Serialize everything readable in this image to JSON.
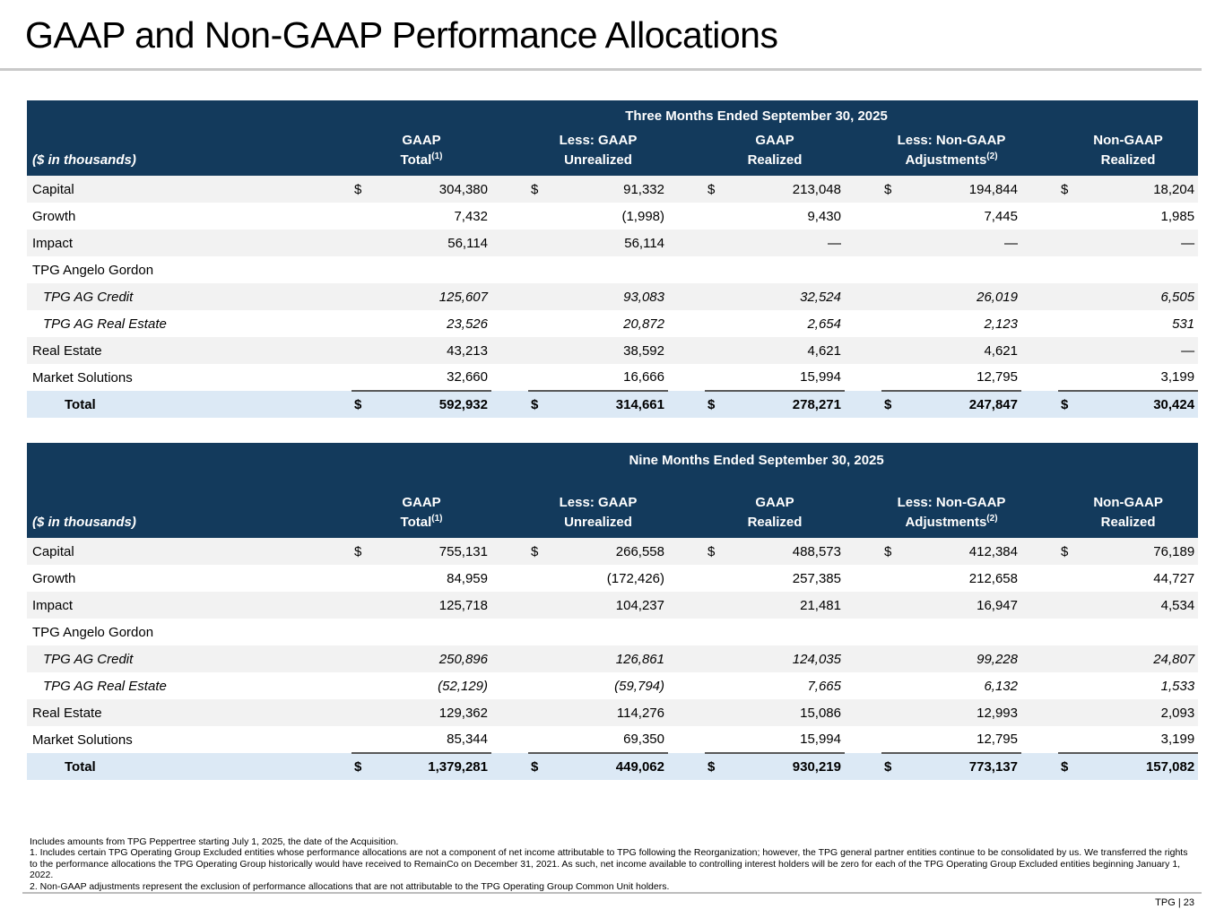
{
  "page": {
    "title": "GAAP and Non-GAAP Performance Allocations",
    "footer": "TPG | 23"
  },
  "colors": {
    "header_bg": "#133A5C",
    "row_alt_bg": "#F2F2F2",
    "total_row_bg": "#DCE9F5",
    "divider": "#C9C9C9",
    "sum_line": "#595959"
  },
  "tables": [
    {
      "period": "Three Months Ended September 30, 2025",
      "row_header": "($ in thousands)",
      "currency_symbol": "$",
      "columns": [
        {
          "line1": "GAAP",
          "line2": "Total",
          "sup": "(1)"
        },
        {
          "line1": "Less: GAAP",
          "line2": "Unrealized",
          "sup": ""
        },
        {
          "line1": "GAAP",
          "line2": "Realized",
          "sup": ""
        },
        {
          "line1": "Less: Non-GAAP",
          "line2": "Adjustments",
          "sup": "(2)"
        },
        {
          "line1": "Non-GAAP",
          "line2": "Realized",
          "sup": ""
        }
      ],
      "rows": [
        {
          "label": "Capital",
          "indent": false,
          "italic": false,
          "show_dollar": true,
          "values": [
            "304,380",
            "91,332",
            "213,048",
            "194,844",
            "18,204"
          ]
        },
        {
          "label": "Growth",
          "indent": false,
          "italic": false,
          "show_dollar": false,
          "values": [
            "7,432",
            "(1,998)",
            "9,430",
            "7,445",
            "1,985"
          ]
        },
        {
          "label": "Impact",
          "indent": false,
          "italic": false,
          "show_dollar": false,
          "values": [
            "56,114",
            "56,114",
            "—",
            "—",
            "—"
          ]
        },
        {
          "label": "TPG Angelo Gordon",
          "indent": false,
          "italic": false,
          "show_dollar": false,
          "values": [
            "",
            "",
            "",
            "",
            ""
          ]
        },
        {
          "label": "TPG AG Credit",
          "indent": true,
          "italic": true,
          "show_dollar": false,
          "values": [
            "125,607",
            "93,083",
            "32,524",
            "26,019",
            "6,505"
          ]
        },
        {
          "label": "TPG AG Real Estate",
          "indent": true,
          "italic": true,
          "show_dollar": false,
          "values": [
            "23,526",
            "20,872",
            "2,654",
            "2,123",
            "531"
          ]
        },
        {
          "label": "Real Estate",
          "indent": false,
          "italic": false,
          "show_dollar": false,
          "values": [
            "43,213",
            "38,592",
            "4,621",
            "4,621",
            "—"
          ]
        },
        {
          "label": "Market Solutions",
          "indent": false,
          "italic": false,
          "show_dollar": false,
          "values": [
            "32,660",
            "16,666",
            "15,994",
            "12,795",
            "3,199"
          ]
        }
      ],
      "total": {
        "label": "Total",
        "values": [
          "592,932",
          "314,661",
          "278,271",
          "247,847",
          "30,424"
        ]
      }
    },
    {
      "period": "Nine Months Ended September 30, 2025",
      "row_header": "($ in thousands)",
      "currency_symbol": "$",
      "columns": [
        {
          "line1": "GAAP",
          "line2": "Total",
          "sup": "(1)"
        },
        {
          "line1": "Less: GAAP",
          "line2": "Unrealized",
          "sup": ""
        },
        {
          "line1": "GAAP",
          "line2": "Realized",
          "sup": ""
        },
        {
          "line1": "Less: Non-GAAP",
          "line2": "Adjustments",
          "sup": "(2)"
        },
        {
          "line1": "Non-GAAP",
          "line2": "Realized",
          "sup": ""
        }
      ],
      "rows": [
        {
          "label": "Capital",
          "indent": false,
          "italic": false,
          "show_dollar": true,
          "values": [
            "755,131",
            "266,558",
            "488,573",
            "412,384",
            "76,189"
          ]
        },
        {
          "label": "Growth",
          "indent": false,
          "italic": false,
          "show_dollar": false,
          "values": [
            "84,959",
            "(172,426)",
            "257,385",
            "212,658",
            "44,727"
          ]
        },
        {
          "label": "Impact",
          "indent": false,
          "italic": false,
          "show_dollar": false,
          "values": [
            "125,718",
            "104,237",
            "21,481",
            "16,947",
            "4,534"
          ]
        },
        {
          "label": "TPG Angelo Gordon",
          "indent": false,
          "italic": false,
          "show_dollar": false,
          "values": [
            "",
            "",
            "",
            "",
            ""
          ]
        },
        {
          "label": "TPG AG Credit",
          "indent": true,
          "italic": true,
          "show_dollar": false,
          "values": [
            "250,896",
            "126,861",
            "124,035",
            "99,228",
            "24,807"
          ]
        },
        {
          "label": "TPG AG Real Estate",
          "indent": true,
          "italic": true,
          "show_dollar": false,
          "values": [
            "(52,129)",
            "(59,794)",
            "7,665",
            "6,132",
            "1,533"
          ]
        },
        {
          "label": "Real Estate",
          "indent": false,
          "italic": false,
          "show_dollar": false,
          "values": [
            "129,362",
            "114,276",
            "15,086",
            "12,993",
            "2,093"
          ]
        },
        {
          "label": "Market Solutions",
          "indent": false,
          "italic": false,
          "show_dollar": false,
          "values": [
            "85,344",
            "69,350",
            "15,994",
            "12,795",
            "3,199"
          ]
        }
      ],
      "total": {
        "label": "Total",
        "values": [
          "1,379,281",
          "449,062",
          "930,219",
          "773,137",
          "157,082"
        ]
      }
    }
  ],
  "footnotes": [
    "Includes amounts from TPG Peppertree starting July 1, 2025, the date of the Acquisition.",
    "1. Includes certain TPG Operating Group Excluded entities whose performance allocations are not a component of net income attributable to TPG following the Reorganization; however, the TPG general partner entities continue to be consolidated by us. We transferred the rights to the performance allocations the TPG Operating Group historically would have received to RemainCo on December 31, 2021. As such, net income available to controlling interest holders will be zero for each of the TPG Operating Group Excluded entities beginning January 1, 2022.",
    "2. Non-GAAP adjustments represent the exclusion of performance allocations that are not attributable to the TPG Operating Group Common Unit holders."
  ]
}
